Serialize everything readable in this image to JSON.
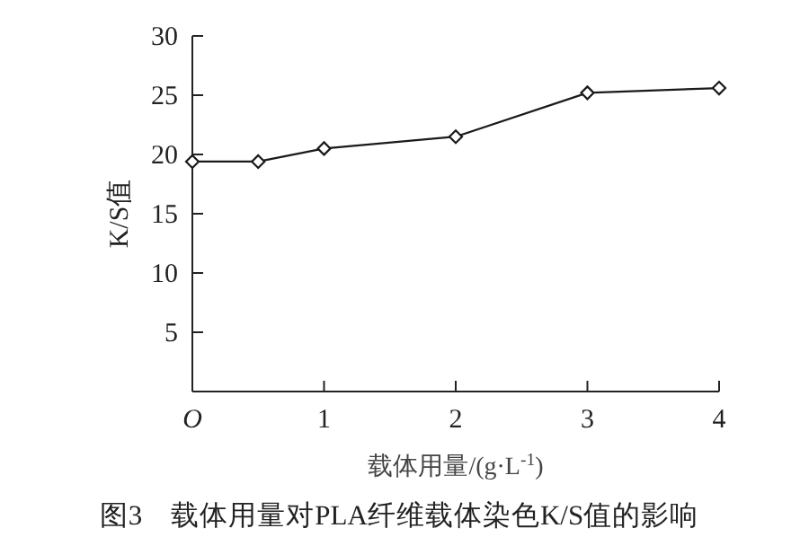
{
  "chart_data": {
    "type": "line",
    "title": "图3　载体用量对PLA纤维载体染色K/S值的影响",
    "xlabel": "载体用量/(g·L$^{-1}$)",
    "ylabel": "K/S值",
    "x": [
      0,
      0.5,
      1,
      2,
      3,
      4
    ],
    "values": [
      19.4,
      19.4,
      20.5,
      21.5,
      25.2,
      25.6
    ],
    "color": "#1a1a1a",
    "marker": "diamond",
    "line_style": "solid",
    "xlim": [
      0,
      4
    ],
    "ylim": [
      0,
      30
    ],
    "xticks": [
      {
        "value": 0,
        "label": "O"
      },
      1,
      2,
      3,
      4
    ],
    "yticks": [
      5,
      10,
      15,
      20,
      25,
      30
    ],
    "grid": false
  }
}
